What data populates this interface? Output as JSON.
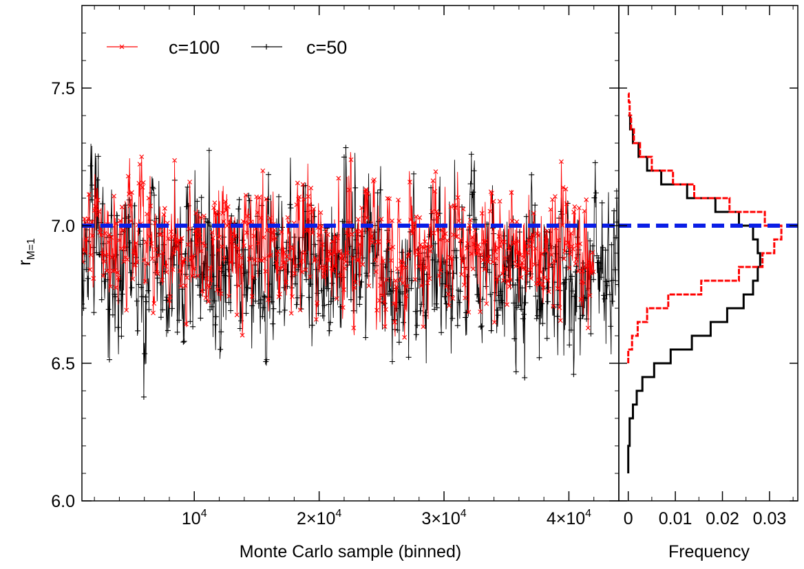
{
  "chart_data": [
    {
      "type": "line",
      "panel": "trace",
      "xlabel": "Monte Carlo sample (binned)",
      "ylabel_main": "r",
      "ylabel_sub": "M=1",
      "xlim": [
        1000,
        44000
      ],
      "ylim": [
        6.0,
        7.8
      ],
      "x_ticks": [
        {
          "value": 10000,
          "mantissa": "",
          "base": "10",
          "exponent": "4"
        },
        {
          "value": 20000,
          "mantissa": "2×",
          "base": "10",
          "exponent": "4"
        },
        {
          "value": 30000,
          "mantissa": "3×",
          "base": "10",
          "exponent": "4"
        },
        {
          "value": 40000,
          "mantissa": "4×",
          "base": "10",
          "exponent": "4"
        }
      ],
      "y_ticks": [
        {
          "value": 6.0,
          "label": "6.0"
        },
        {
          "value": 6.5,
          "label": "6.5"
        },
        {
          "value": 7.0,
          "label": "7.0"
        },
        {
          "value": 7.5,
          "label": "7.5"
        }
      ],
      "reference_line": {
        "y": 7.0,
        "color": "#0a1ee6",
        "style": "dashed"
      },
      "legend": {
        "position": "top-left"
      },
      "series": [
        {
          "name": "c=100",
          "color": "#ff0000",
          "marker": "x",
          "x_start": 1000,
          "x_end": 42000,
          "n_points": 1150,
          "mean": 6.91,
          "std": 0.12,
          "min": 6.47,
          "max": 7.31
        },
        {
          "name": "c=50",
          "color": "#000000",
          "marker": "+",
          "x_start": 1000,
          "x_end": 44000,
          "n_points": 1250,
          "mean": 6.86,
          "std": 0.15,
          "min": 6.3,
          "max": 7.3
        }
      ]
    },
    {
      "type": "line",
      "panel": "histogram",
      "xlabel": "Frequency",
      "xlim": [
        -0.002,
        0.036
      ],
      "ylim": [
        6.0,
        7.8
      ],
      "x_ticks": [
        {
          "value": 0,
          "label": "0"
        },
        {
          "value": 0.01,
          "label": "0.01"
        },
        {
          "value": 0.02,
          "label": "0.02"
        },
        {
          "value": 0.03,
          "label": "0.03"
        }
      ],
      "reference_line": {
        "y": 7.0,
        "color": "#0a1ee6",
        "style": "dashed"
      },
      "series": [
        {
          "name": "c=100",
          "color": "#ff0000",
          "style": "step",
          "r": [
            6.5,
            6.55,
            6.6,
            6.65,
            6.7,
            6.75,
            6.8,
            6.85,
            6.9,
            6.95,
            7.0,
            7.05,
            7.1,
            7.15,
            7.2,
            7.25,
            7.3,
            7.35,
            7.4,
            7.45,
            7.48
          ],
          "frequency": [
            0.0,
            0.0008,
            0.002,
            0.004,
            0.0085,
            0.0155,
            0.0235,
            0.0285,
            0.031,
            0.0325,
            0.029,
            0.0215,
            0.014,
            0.0095,
            0.005,
            0.0025,
            0.0012,
            0.0006,
            0.0003,
            0.0001,
            0.0
          ]
        },
        {
          "name": "c=50",
          "color": "#000000",
          "style": "step",
          "r": [
            6.1,
            6.2,
            6.3,
            6.35,
            6.4,
            6.45,
            6.5,
            6.55,
            6.6,
            6.65,
            6.7,
            6.75,
            6.8,
            6.85,
            6.9,
            6.95,
            7.0,
            7.05,
            7.1,
            7.15,
            7.2,
            7.25,
            7.3,
            7.35,
            7.4
          ],
          "frequency": [
            0.0,
            0.0003,
            0.001,
            0.0018,
            0.003,
            0.0055,
            0.009,
            0.0135,
            0.0175,
            0.021,
            0.0245,
            0.0265,
            0.0275,
            0.028,
            0.0275,
            0.0265,
            0.0235,
            0.0185,
            0.0125,
            0.007,
            0.004,
            0.0022,
            0.001,
            0.0004,
            0.0
          ]
        }
      ]
    }
  ]
}
